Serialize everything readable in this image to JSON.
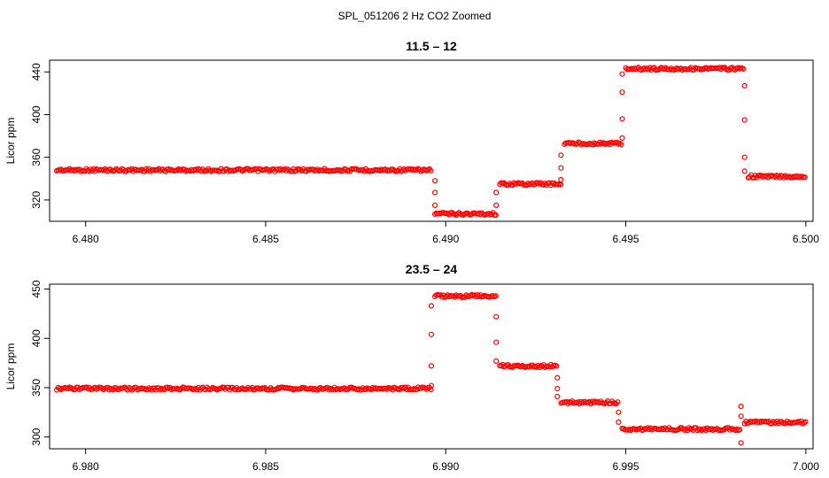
{
  "figure_title": "SPL_051206  2 Hz CO2 Zoomed",
  "colors": {
    "points": "#ff0000",
    "axis": "#000000",
    "background": "#ffffff"
  },
  "chart_data": [
    {
      "type": "scatter",
      "title": "11.5 – 12",
      "xlabel": "",
      "ylabel": "Licor ppm",
      "xlim": [
        6.479,
        6.5002
      ],
      "ylim": [
        300,
        451
      ],
      "x_ticks": [
        6.48,
        6.485,
        6.49,
        6.495,
        6.5
      ],
      "x_tick_labels": [
        "6.480",
        "6.485",
        "6.490",
        "6.495",
        "6.500"
      ],
      "y_ticks": [
        320,
        360,
        400,
        440
      ],
      "y_tick_labels": [
        "320",
        "360",
        "400",
        "440"
      ],
      "grid": false,
      "series": [
        {
          "marker": "open-circle",
          "steps": [
            {
              "x0": 6.4792,
              "x1": 6.4896,
              "y": 348
            },
            {
              "x0": 6.4897,
              "x1": 6.4914,
              "y": 307
            },
            {
              "x0": 6.4915,
              "x1": 6.4932,
              "y": 335
            },
            {
              "x0": 6.4933,
              "x1": 6.4949,
              "y": 373
            },
            {
              "x0": 6.495,
              "x1": 6.4983,
              "y": 443
            },
            {
              "x0": 6.4984,
              "x1": 6.5,
              "y": 342
            }
          ],
          "transitions": [
            {
              "x": 6.4897,
              "y": [
                338,
                327,
                315
              ]
            },
            {
              "x": 6.4914,
              "y": [
                315,
                327
              ]
            },
            {
              "x": 6.4932,
              "y": [
                339,
                350,
                362
              ]
            },
            {
              "x": 6.4949,
              "y": [
                378,
                396,
                421,
                438
              ]
            },
            {
              "x": 6.4983,
              "y": [
                427,
                395,
                360,
                347
              ]
            }
          ]
        }
      ]
    },
    {
      "type": "scatter",
      "title": "23.5 – 24",
      "xlabel": "",
      "ylabel": "Licor ppm",
      "xlim": [
        6.979,
        7.0002
      ],
      "ylim": [
        288,
        455
      ],
      "x_ticks": [
        6.98,
        6.985,
        6.99,
        6.995,
        7.0
      ],
      "x_tick_labels": [
        "6.980",
        "6.985",
        "6.990",
        "6.995",
        "7.000"
      ],
      "y_ticks": [
        300,
        350,
        400,
        450
      ],
      "y_tick_labels": [
        "300",
        "350",
        "400",
        "450"
      ],
      "grid": false,
      "series": [
        {
          "marker": "open-circle",
          "steps": [
            {
              "x0": 6.9792,
              "x1": 6.9896,
              "y": 349
            },
            {
              "x0": 6.9897,
              "x1": 6.9914,
              "y": 443
            },
            {
              "x0": 6.9915,
              "x1": 6.9931,
              "y": 372
            },
            {
              "x0": 6.9932,
              "x1": 6.9948,
              "y": 335
            },
            {
              "x0": 6.9949,
              "x1": 6.9982,
              "y": 308
            },
            {
              "x0": 6.9983,
              "x1": 7.0,
              "y": 315
            }
          ],
          "transitions": [
            {
              "x": 6.9896,
              "y": [
                352,
                372,
                404,
                433
              ]
            },
            {
              "x": 6.9914,
              "y": [
                422,
                396,
                377
              ]
            },
            {
              "x": 6.9931,
              "y": [
                360,
                349,
                341
              ]
            },
            {
              "x": 6.9948,
              "y": [
                325,
                315
              ]
            },
            {
              "x": 6.9982,
              "y": [
                294,
                321,
                331
              ]
            }
          ]
        }
      ]
    }
  ]
}
